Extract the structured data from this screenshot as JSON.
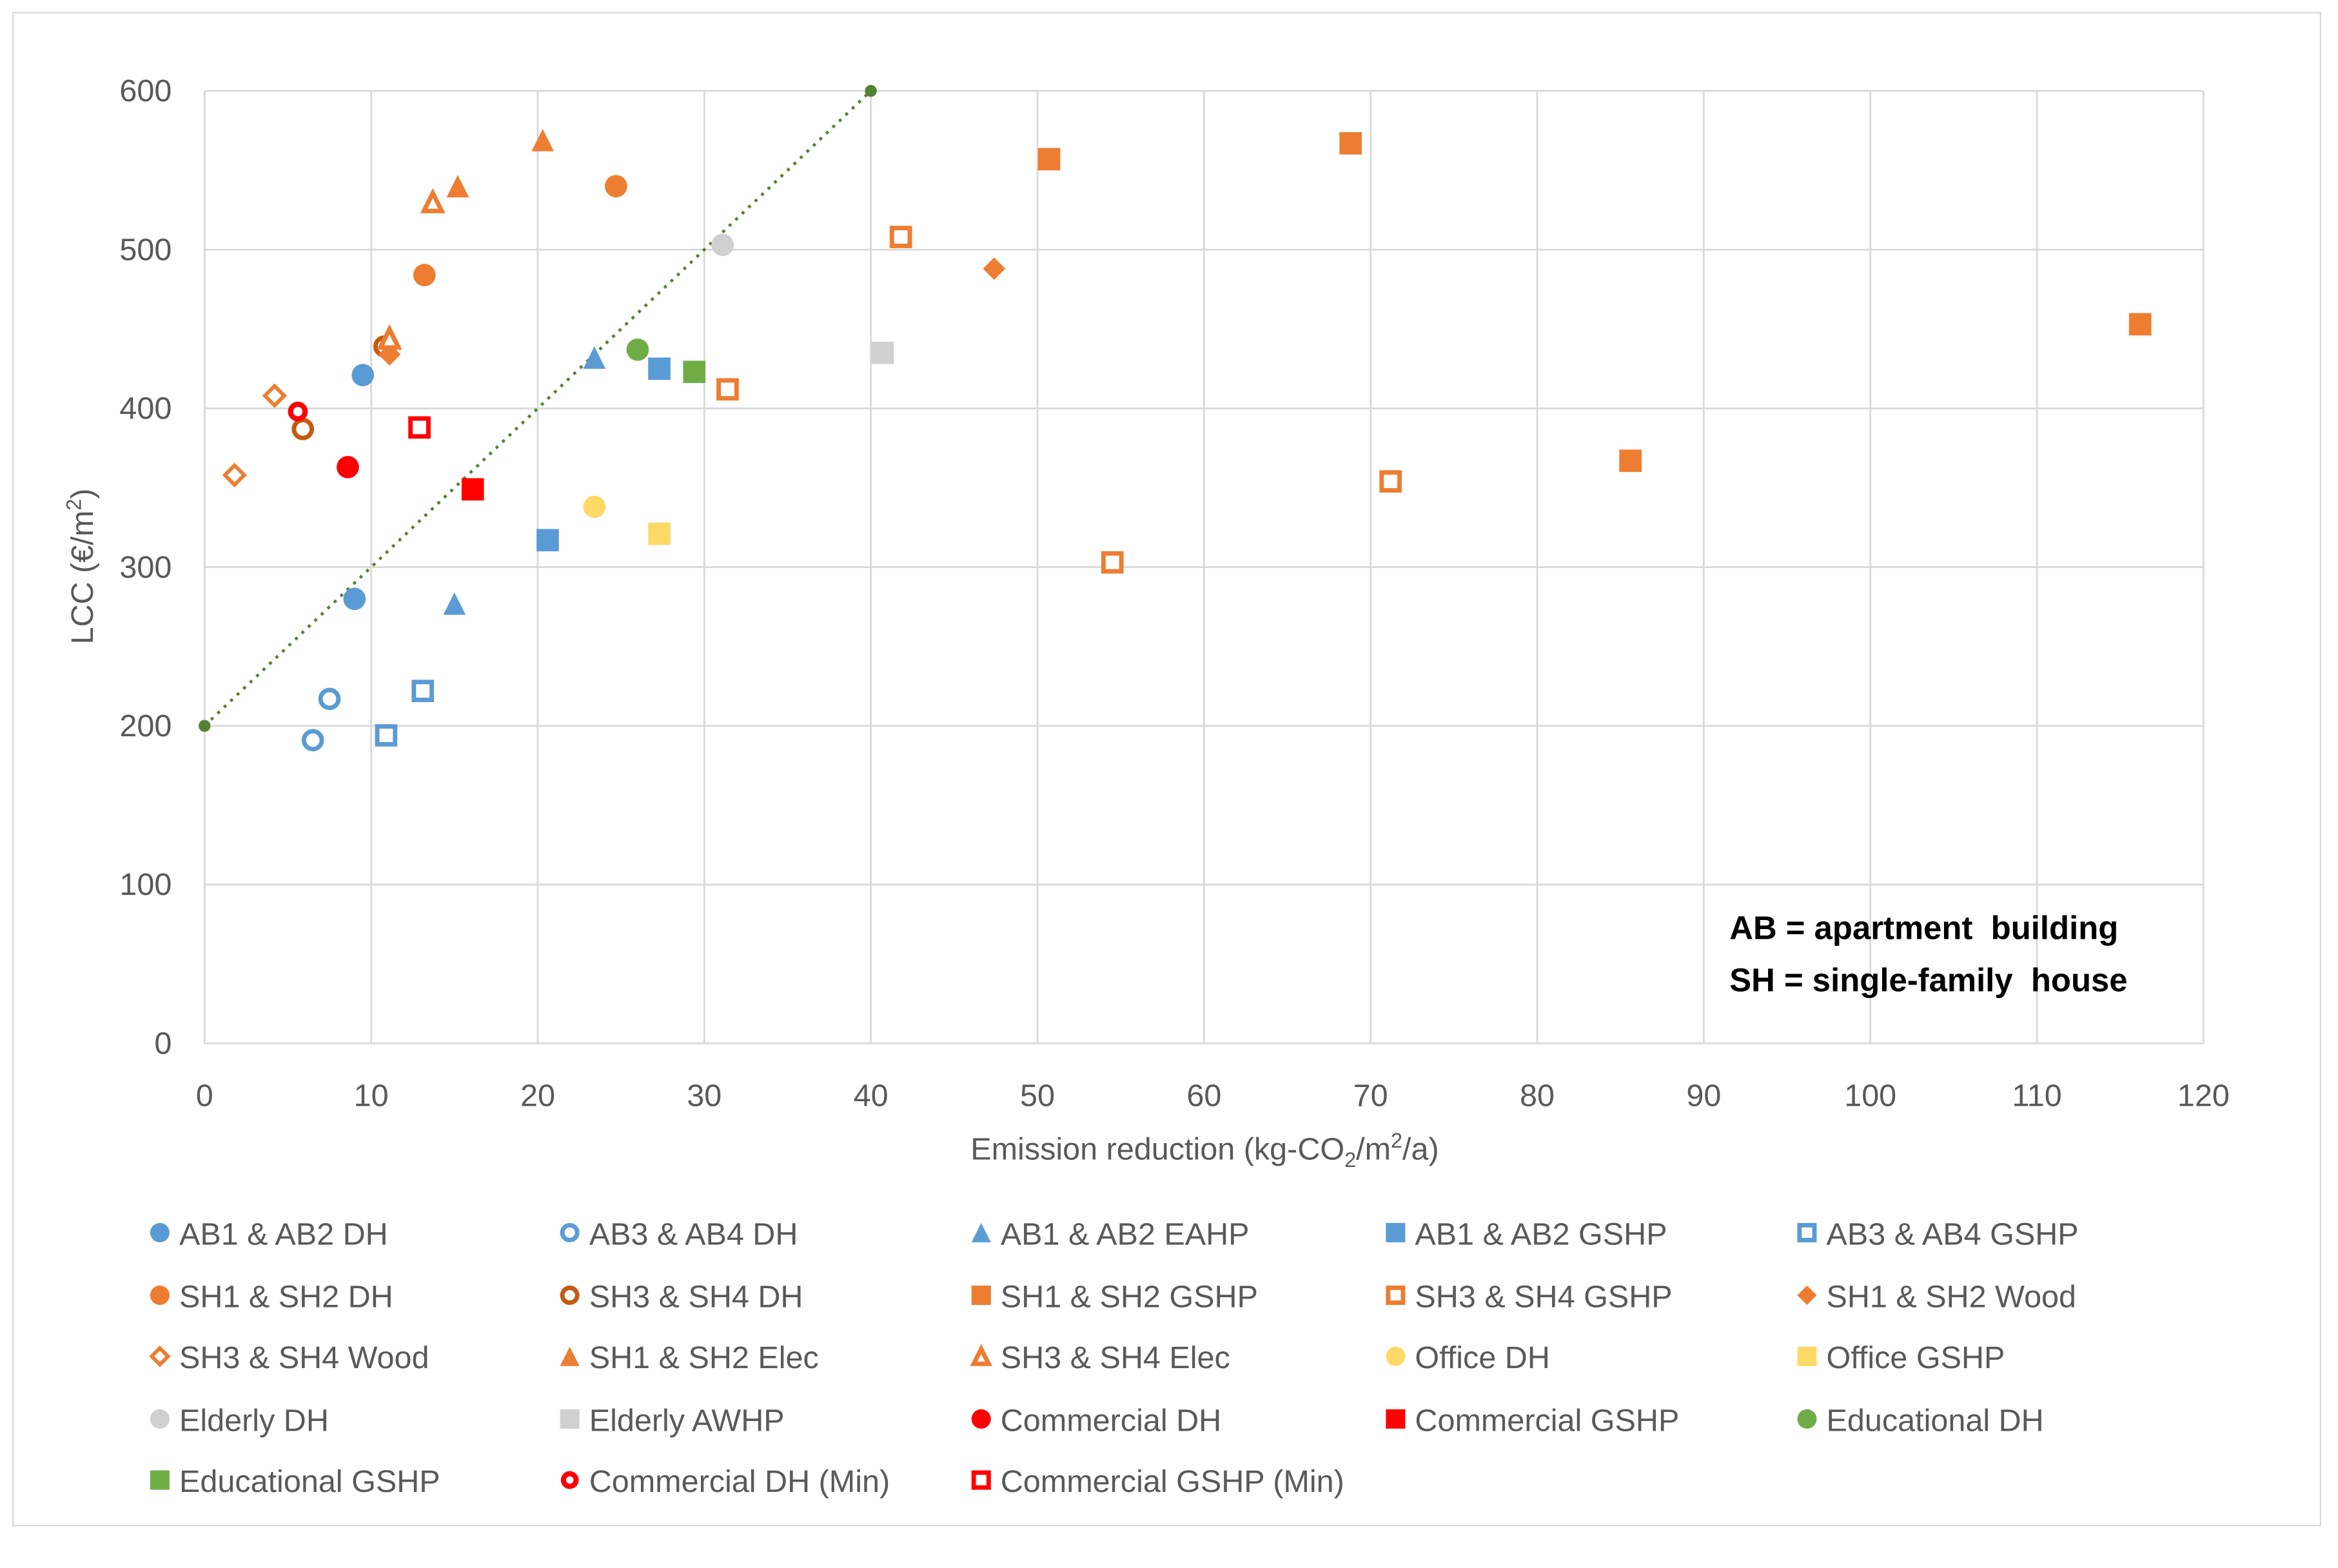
{
  "chart_data": {
    "type": "scatter",
    "xlabel": "Emission reduction (kg-CO2/m2/a)",
    "xlabel_parts": {
      "a": "Emission reduction (kg-CO",
      "sub": "2",
      "b": "/m",
      "sup": "2",
      "c": "/a)"
    },
    "ylabel": "LCC (€/m2)",
    "ylabel_parts": {
      "a": "LCC (€/m",
      "sup": "2",
      "b": ")"
    },
    "xlim": [
      0,
      120
    ],
    "ylim": [
      0,
      600
    ],
    "xticks": [
      0,
      10,
      20,
      30,
      40,
      50,
      60,
      70,
      80,
      90,
      100,
      110,
      120
    ],
    "yticks": [
      0,
      100,
      200,
      300,
      400,
      500,
      600
    ],
    "grid": true,
    "legend_position": "bottom",
    "annotations": [
      "AB = apartment  building",
      "SH = single-family  house"
    ],
    "trendline": {
      "x": [
        0,
        40
      ],
      "y": [
        200,
        600
      ],
      "color": "#548235",
      "style": "dotted"
    },
    "series": [
      {
        "name": "AB1 & AB2 DH",
        "marker": "circle",
        "filled": true,
        "color": "#5B9BD5",
        "x": [
          9.5,
          9.0
        ],
        "y": [
          421,
          280
        ]
      },
      {
        "name": "AB3 & AB4 DH",
        "marker": "circle",
        "filled": false,
        "color": "#5B9BD5",
        "x": [
          7.5,
          6.5
        ],
        "y": [
          217,
          191
        ]
      },
      {
        "name": "AB1 & AB2 EAHP",
        "marker": "triangle",
        "filled": true,
        "color": "#5B9BD5",
        "x": [
          23.4,
          15.0
        ],
        "y": [
          432,
          277
        ]
      },
      {
        "name": "AB1 & AB2 GSHP",
        "marker": "square",
        "filled": true,
        "color": "#5B9BD5",
        "x": [
          27.3,
          20.6
        ],
        "y": [
          425,
          317
        ]
      },
      {
        "name": "AB3 & AB4 GSHP",
        "marker": "square",
        "filled": false,
        "color": "#5B9BD5",
        "x": [
          13.1,
          10.9
        ],
        "y": [
          222,
          194
        ]
      },
      {
        "name": "SH1 & SH2 DH",
        "marker": "circle",
        "filled": true,
        "color": "#ED7D31",
        "x": [
          13.2,
          24.7
        ],
        "y": [
          484,
          540
        ]
      },
      {
        "name": "SH3 & SH4 DH",
        "marker": "circle",
        "filled": false,
        "color": "#C55A11",
        "x": [
          10.8,
          5.9
        ],
        "y": [
          439,
          387
        ]
      },
      {
        "name": "SH1 & SH2 GSHP",
        "marker": "square",
        "filled": true,
        "color": "#ED7D31",
        "x": [
          50.7,
          68.8,
          116.2,
          85.6
        ],
        "y": [
          557,
          567,
          453,
          367
        ]
      },
      {
        "name": "SH3 & SH4 GSHP",
        "marker": "square",
        "filled": false,
        "color": "#ED7D31",
        "x": [
          41.8,
          31.4,
          71.2,
          54.5
        ],
        "y": [
          508,
          412,
          354,
          303
        ]
      },
      {
        "name": "SH1 & SH2 Wood",
        "marker": "diamond",
        "filled": true,
        "color": "#ED7D31",
        "x": [
          47.4,
          11.1
        ],
        "y": [
          488,
          434
        ]
      },
      {
        "name": "SH3 & SH4 Wood",
        "marker": "diamond",
        "filled": false,
        "color": "#ED7D31",
        "x": [
          4.2,
          1.8
        ],
        "y": [
          408,
          358
        ]
      },
      {
        "name": "SH1 & SH2 Elec",
        "marker": "triangle",
        "filled": true,
        "color": "#ED7D31",
        "x": [
          20.3,
          15.2,
          11.1
        ],
        "y": [
          569,
          540,
          446
        ]
      },
      {
        "name": "SH3 & SH4 Elec",
        "marker": "triangle",
        "filled": false,
        "color": "#ED7D31",
        "x": [
          13.7,
          11.1
        ],
        "y": [
          530,
          444
        ]
      },
      {
        "name": "Office DH",
        "marker": "circle",
        "filled": true,
        "color": "#FFD966",
        "x": [
          23.4
        ],
        "y": [
          338
        ]
      },
      {
        "name": "Office GSHP",
        "marker": "square",
        "filled": true,
        "color": "#FFD966",
        "x": [
          27.3
        ],
        "y": [
          321
        ]
      },
      {
        "name": "Elderly DH",
        "marker": "circle",
        "filled": true,
        "color": "#D0D0D0",
        "x": [
          31.1
        ],
        "y": [
          503
        ]
      },
      {
        "name": "Elderly AWHP",
        "marker": "square",
        "filled": true,
        "color": "#D0D0D0",
        "x": [
          40.7
        ],
        "y": [
          435
        ]
      },
      {
        "name": "Commercial DH",
        "marker": "circle",
        "filled": true,
        "color": "#FF0000",
        "x": [
          8.6
        ],
        "y": [
          363
        ]
      },
      {
        "name": "Commercial GSHP",
        "marker": "square",
        "filled": true,
        "color": "#FF0000",
        "x": [
          16.1
        ],
        "y": [
          349
        ]
      },
      {
        "name": "Educational DH",
        "marker": "circle",
        "filled": true,
        "color": "#70AD47",
        "x": [
          26.0
        ],
        "y": [
          437
        ]
      },
      {
        "name": "Educational GSHP",
        "marker": "square",
        "filled": true,
        "color": "#70AD47",
        "x": [
          29.4
        ],
        "y": [
          423
        ]
      },
      {
        "name": "Commercial DH (Min)",
        "marker": "circle-small",
        "filled": false,
        "color": "#FF0000",
        "x": [
          5.6
        ],
        "y": [
          398
        ]
      },
      {
        "name": "Commercial GSHP (Min)",
        "marker": "square",
        "filled": false,
        "color": "#FF0000",
        "x": [
          12.9
        ],
        "y": [
          388
        ]
      }
    ]
  }
}
